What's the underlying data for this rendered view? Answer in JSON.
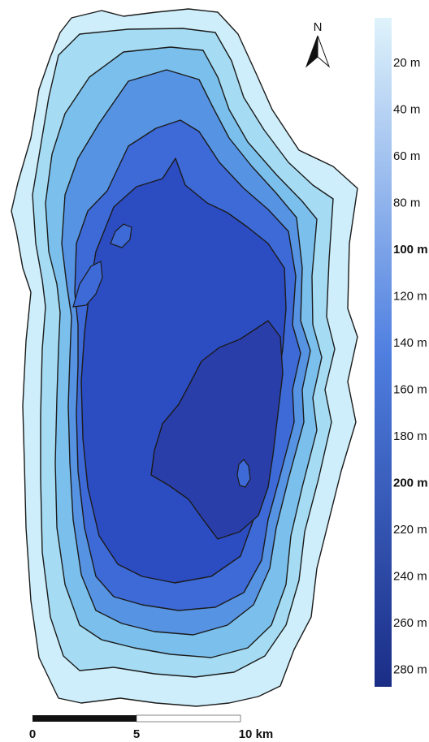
{
  "north_arrow": {
    "label": "N"
  },
  "depth_legend": {
    "labels": [
      {
        "text": "20 m",
        "major": false
      },
      {
        "text": "40 m",
        "major": false
      },
      {
        "text": "60 m",
        "major": false
      },
      {
        "text": "80 m",
        "major": false
      },
      {
        "text": "100 m",
        "major": true
      },
      {
        "text": "120 m",
        "major": false
      },
      {
        "text": "140 m",
        "major": false
      },
      {
        "text": "160 m",
        "major": false
      },
      {
        "text": "180 m",
        "major": false
      },
      {
        "text": "200 m",
        "major": true
      },
      {
        "text": "220 m",
        "major": false
      },
      {
        "text": "240 m",
        "major": false
      },
      {
        "text": "260 m",
        "major": false
      },
      {
        "text": "280 m",
        "major": false
      }
    ],
    "color_top": "#dff3fb",
    "color_mid": "#4f7fe0",
    "color_bottom": "#1a2d86"
  },
  "scale_bar": {
    "labels": [
      "0",
      "5",
      "10 km"
    ],
    "fill_color": "#111111"
  },
  "lake": {
    "depth_colors": [
      "#cdeefa",
      "#a6dcf3",
      "#7bc0ec",
      "#5693e2",
      "#3d6ad6",
      "#2c4cc2",
      "#2a3eaa"
    ],
    "contour_color": "#1b1b1b"
  }
}
